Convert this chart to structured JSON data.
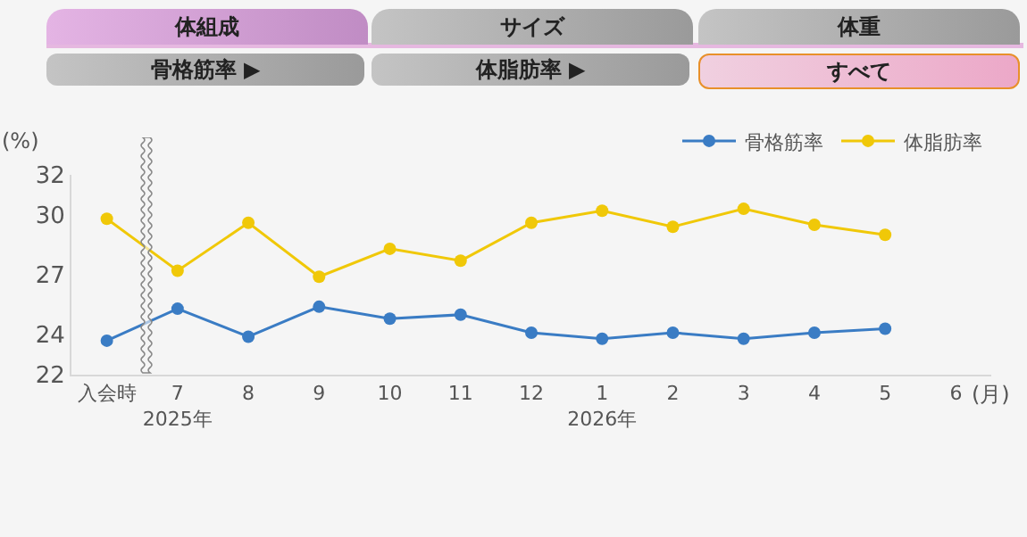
{
  "chart_data": {
    "type": "line",
    "ylabel": "(%)",
    "xlabel": "(月)",
    "annotations": [
      "体組成",
      "サイズ",
      "体重",
      "骨格筋率 ▶",
      "体脂肪率 ▶",
      "すべて"
    ],
    "categories": [
      "入会時",
      "7\n2025年",
      "8",
      "9",
      "10",
      "11",
      "12",
      "1\n2026年",
      "2",
      "3",
      "4",
      "5",
      "6"
    ],
    "series": [
      {
        "name": "骨格筋率",
        "color": "#3a7cc4",
        "values": [
          23.7,
          25.3,
          23.9,
          25.4,
          24.8,
          25.0,
          24.1,
          23.8,
          24.1,
          23.8,
          24.1,
          24.3,
          null
        ]
      },
      {
        "name": "体脂肪率",
        "color": "#f0c808",
        "values": [
          29.8,
          27.2,
          29.6,
          26.9,
          28.3,
          27.7,
          29.6,
          30.2,
          29.4,
          30.3,
          29.5,
          29.0,
          null
        ]
      }
    ],
    "ylim": [
      22,
      32
    ],
    "yticks": [
      22,
      24,
      27,
      30,
      32
    ],
    "grid": false,
    "legend": "top right",
    "marker": "circle",
    "line_style": "solid"
  }
}
